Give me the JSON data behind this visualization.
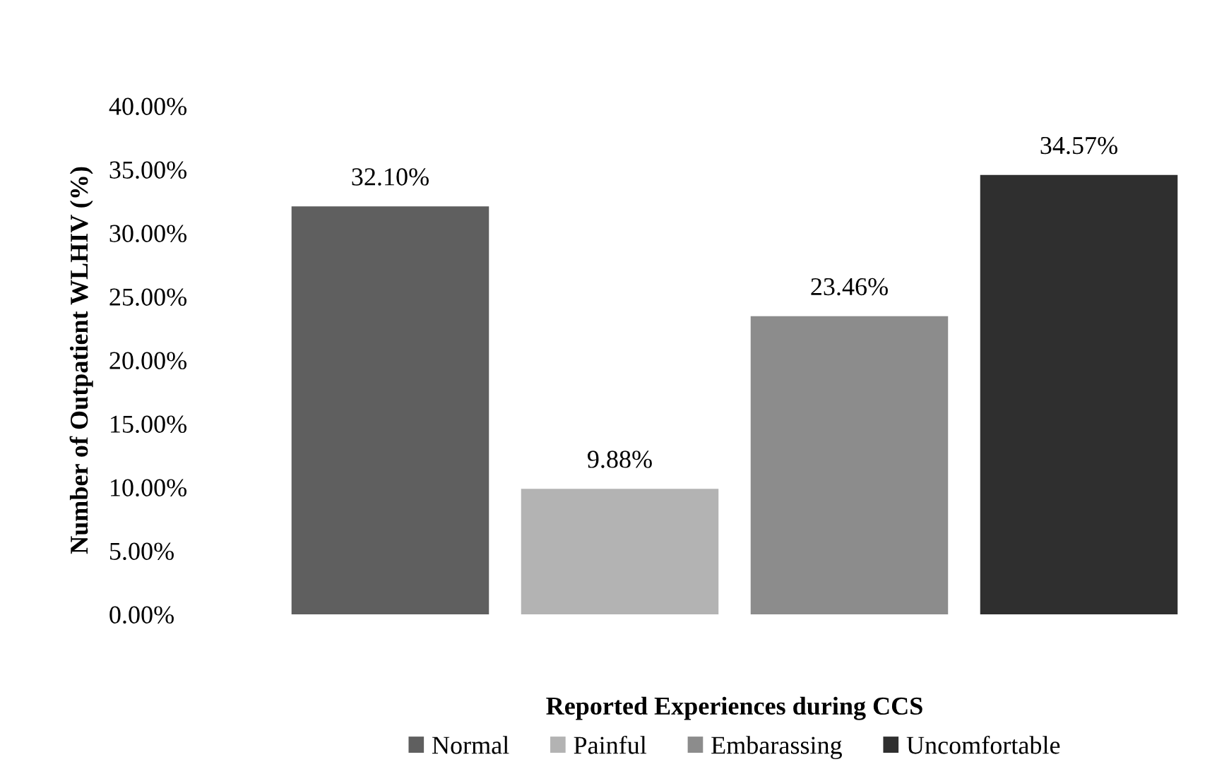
{
  "chart_data": {
    "type": "bar",
    "xlabel": "Reported Experiences during CCS",
    "ylabel": "Number of Outpatient WLHIV (%)",
    "categories": [
      null,
      null,
      null,
      null
    ],
    "stacked": true,
    "series": [
      {
        "name": "Normal",
        "color": "#5f5f5f",
        "values": [
          32.1,
          null,
          null,
          null
        ],
        "value_labels": [
          "32.10%",
          null,
          null,
          null
        ]
      },
      {
        "name": "Painful",
        "color": "#b3b3b3",
        "values": [
          null,
          9.88,
          null,
          null
        ],
        "value_labels": [
          null,
          "9.88%",
          null,
          null
        ]
      },
      {
        "name": "Embarassing",
        "color": "#8c8c8c",
        "values": [
          null,
          null,
          23.46,
          null
        ],
        "value_labels": [
          null,
          null,
          "23.46%",
          null
        ]
      },
      {
        "name": "Uncomfortable",
        "color": "#2f2f2f",
        "values": [
          null,
          null,
          null,
          34.57
        ],
        "value_labels": [
          null,
          null,
          null,
          "34.57%"
        ]
      }
    ],
    "ylim": [
      0,
      40
    ],
    "yticks": [
      {
        "value": 0,
        "label": "0.00%"
      },
      {
        "value": 5,
        "label": "5.00%"
      },
      {
        "value": 10,
        "label": "10.00%"
      },
      {
        "value": 15,
        "label": "15.00%"
      },
      {
        "value": 20,
        "label": "20.00%"
      },
      {
        "value": 25,
        "label": "25.00%"
      },
      {
        "value": 30,
        "label": "30.00%"
      },
      {
        "value": 35,
        "label": "35.00%"
      },
      {
        "value": 40,
        "label": "40.00%"
      }
    ],
    "grid": false,
    "legend": "bottom",
    "tick_labels": "y"
  }
}
